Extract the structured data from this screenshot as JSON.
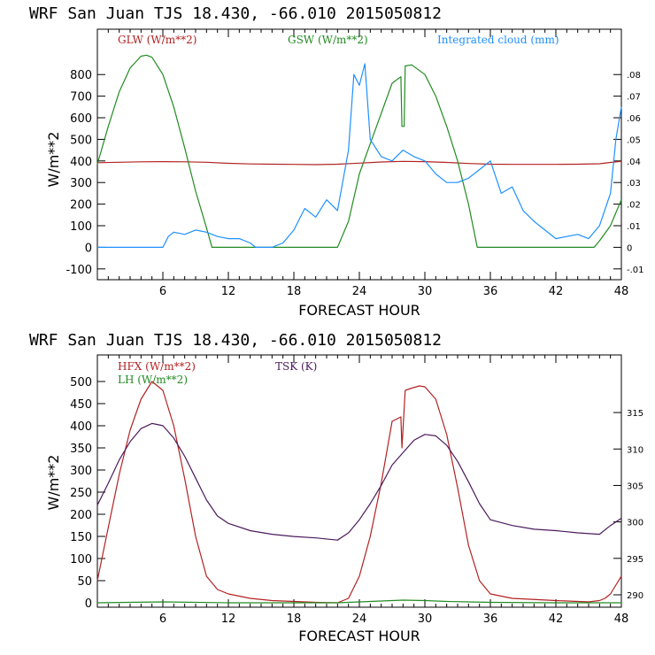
{
  "chart_data": [
    {
      "type": "line",
      "title": "WRF   San Juan TJS  18.430, -66.010  2015050812",
      "xlabel": "FORECAST HOUR",
      "ylabel": "W/m**2",
      "xlim": [
        0,
        48
      ],
      "ylim": [
        -150,
        1010
      ],
      "xticks": [
        6,
        12,
        18,
        24,
        30,
        36,
        42,
        48
      ],
      "yticks": [
        -100,
        0,
        100,
        200,
        300,
        400,
        500,
        600,
        700,
        800
      ],
      "right_axis": {
        "ylim": [
          -0.015,
          0.101
        ],
        "ticks": [
          -0.01,
          0,
          0.01,
          0.02,
          0.03,
          0.04,
          0.05,
          0.06,
          0.07,
          0.08
        ],
        "tick_labels": [
          "-.01",
          "0",
          ".01",
          ".02",
          ".03",
          ".04",
          ".05",
          ".06",
          ".07",
          ".08"
        ]
      },
      "series": [
        {
          "name": "GLW (W/m**2)",
          "color": "#b22222",
          "axis": "left",
          "x": [
            0,
            2,
            4,
            6,
            8,
            10,
            12,
            14,
            16,
            18,
            20,
            22,
            24,
            26,
            28,
            30,
            32,
            34,
            36,
            38,
            40,
            42,
            44,
            46,
            47,
            48
          ],
          "y": [
            392,
            394,
            396,
            397,
            396,
            394,
            389,
            386,
            385,
            384,
            383,
            385,
            390,
            395,
            398,
            397,
            393,
            388,
            385,
            384,
            384,
            384,
            385,
            387,
            393,
            398
          ]
        },
        {
          "name": "GSW (W/m**2)",
          "color": "#228b22",
          "axis": "left",
          "x": [
            0,
            1,
            2,
            3,
            4,
            4.5,
            5,
            6,
            7,
            8,
            9,
            10,
            10.5,
            12,
            16,
            20,
            22,
            23,
            24,
            25,
            26,
            27,
            27.8,
            27.9,
            28.1,
            28.2,
            28.8,
            30,
            31,
            32,
            33,
            34,
            34.8,
            36,
            40,
            44,
            45.5,
            46,
            47,
            47.5,
            48
          ],
          "y": [
            385,
            560,
            720,
            830,
            885,
            890,
            880,
            800,
            650,
            460,
            260,
            90,
            0,
            0,
            0,
            0,
            0,
            120,
            340,
            480,
            620,
            760,
            790,
            560,
            560,
            840,
            845,
            800,
            700,
            560,
            400,
            200,
            0,
            0,
            0,
            0,
            0,
            30,
            100,
            160,
            220
          ]
        },
        {
          "name": "Integrated cloud (mm)",
          "color": "#1e90ff",
          "axis": "right",
          "x": [
            0,
            3,
            5,
            6,
            6.5,
            7,
            8,
            9,
            10,
            11,
            12,
            13,
            14,
            14.5,
            15,
            16,
            17,
            18,
            19,
            20,
            21,
            22,
            23,
            23.5,
            24,
            24.5,
            25,
            26,
            27,
            28,
            29,
            30,
            31,
            32,
            33,
            34,
            35,
            36,
            37,
            38,
            39,
            40,
            41,
            42,
            43,
            44,
            45,
            46,
            47,
            47.5,
            48
          ],
          "y": [
            0,
            0,
            0,
            0,
            0.005,
            0.007,
            0.006,
            0.008,
            0.007,
            0.005,
            0.004,
            0.004,
            0.002,
            0,
            0,
            0,
            0.002,
            0.008,
            0.018,
            0.014,
            0.022,
            0.017,
            0.045,
            0.08,
            0.075,
            0.085,
            0.05,
            0.042,
            0.04,
            0.045,
            0.042,
            0.04,
            0.034,
            0.03,
            0.03,
            0.032,
            0.036,
            0.04,
            0.025,
            0.028,
            0.017,
            0.012,
            0.008,
            0.004,
            0.005,
            0.006,
            0.004,
            0.01,
            0.025,
            0.05,
            0.065
          ]
        }
      ]
    },
    {
      "type": "line",
      "title": "WRF   San Juan TJS  18.430, -66.010  2015050812",
      "xlabel": "FORECAST HOUR",
      "ylabel": "W/m**2",
      "xlim": [
        0,
        48
      ],
      "ylim": [
        -10,
        560
      ],
      "xticks": [
        6,
        12,
        18,
        24,
        30,
        36,
        42,
        48
      ],
      "yticks": [
        0,
        50,
        100,
        150,
        200,
        250,
        300,
        350,
        400,
        450,
        500
      ],
      "right_axis": {
        "ylim": [
          288.3,
          322.9
        ],
        "ticks": [
          290,
          295,
          300,
          305,
          310,
          315
        ],
        "tick_labels": [
          "290",
          "295",
          "300",
          "305",
          "310",
          "315"
        ]
      },
      "series": [
        {
          "name": "HFX (W/m**2)",
          "color": "#b22222",
          "axis": "left",
          "x": [
            0,
            1,
            2,
            3,
            4,
            5,
            6,
            7,
            8,
            9,
            10,
            11,
            12,
            14,
            16,
            18,
            20,
            22,
            23,
            24,
            25,
            26,
            27,
            27.8,
            27.9,
            28.2,
            28.8,
            29.5,
            30,
            31,
            32,
            33,
            34,
            35,
            36,
            38,
            42,
            45,
            46,
            46.5,
            47,
            47.5,
            48
          ],
          "y": [
            50,
            170,
            290,
            390,
            460,
            500,
            480,
            400,
            280,
            150,
            60,
            30,
            20,
            10,
            5,
            3,
            1,
            0,
            10,
            60,
            150,
            270,
            410,
            420,
            350,
            480,
            485,
            490,
            488,
            460,
            380,
            260,
            130,
            50,
            20,
            10,
            5,
            2,
            5,
            10,
            20,
            40,
            60
          ]
        },
        {
          "name": "LH (W/m**2)",
          "color": "#228b22",
          "axis": "left",
          "x": [
            0,
            6,
            12,
            18,
            22,
            24,
            26,
            28,
            30,
            32,
            34,
            36,
            42,
            48
          ],
          "y": [
            0,
            2,
            0,
            0,
            0,
            2,
            4,
            6,
            5,
            3,
            2,
            1,
            0,
            0
          ]
        },
        {
          "name": "TSK (K)",
          "color": "#4b1a5c",
          "axis": "right",
          "x": [
            0,
            1,
            2,
            3,
            4,
            5,
            6,
            7,
            8,
            9,
            10,
            11,
            12,
            14,
            16,
            18,
            20,
            22,
            23,
            24,
            25,
            26,
            27,
            28,
            29,
            30,
            31,
            32,
            33,
            34,
            35,
            36,
            38,
            40,
            42,
            44,
            46,
            47,
            48
          ],
          "y": [
            302.3,
            305.3,
            308.5,
            311.0,
            312.8,
            313.5,
            313.2,
            311.5,
            309.0,
            306.0,
            303.0,
            300.8,
            299.8,
            298.8,
            298.3,
            298.0,
            297.8,
            297.5,
            298.5,
            300.3,
            302.5,
            305.0,
            307.8,
            309.5,
            311.2,
            312.0,
            311.8,
            310.5,
            308.3,
            305.5,
            302.5,
            300.3,
            299.5,
            299.0,
            298.8,
            298.5,
            298.3,
            299.5,
            300.5
          ]
        }
      ]
    }
  ]
}
